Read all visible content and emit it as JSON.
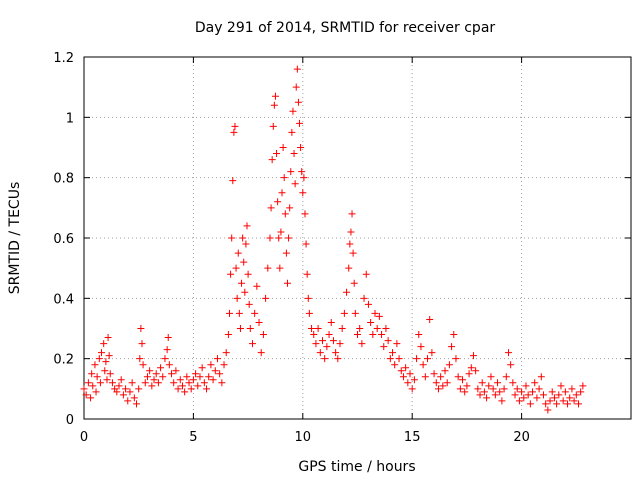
{
  "chart_data": {
    "type": "scatter",
    "title": "Day 291 of 2014, SRMTID for receiver cpar",
    "xlabel": "GPS time / hours",
    "ylabel": "SRMTID / TECUs",
    "xlim": [
      0,
      25
    ],
    "ylim": [
      0,
      1.2
    ],
    "xticks": [
      0,
      5,
      10,
      15,
      20
    ],
    "xtick_labels": [
      "0",
      "5",
      "10",
      "15",
      "20"
    ],
    "yticks": [
      0,
      0.2,
      0.4,
      0.6,
      0.8,
      1,
      1.2
    ],
    "ytick_labels": [
      "0",
      "0.2",
      "0.4",
      "0.6",
      "0.8",
      "1",
      "1.2"
    ],
    "grid": true,
    "marker": "plus",
    "color": "#ff0000",
    "series": [
      {
        "name": "SRMTID",
        "points": [
          [
            0.0,
            0.1
          ],
          [
            0.1,
            0.08
          ],
          [
            0.2,
            0.12
          ],
          [
            0.3,
            0.07
          ],
          [
            0.35,
            0.15
          ],
          [
            0.4,
            0.11
          ],
          [
            0.5,
            0.18
          ],
          [
            0.55,
            0.09
          ],
          [
            0.6,
            0.14
          ],
          [
            0.7,
            0.2
          ],
          [
            0.75,
            0.12
          ],
          [
            0.8,
            0.22
          ],
          [
            0.9,
            0.25
          ],
          [
            0.95,
            0.16
          ],
          [
            1.0,
            0.19
          ],
          [
            1.05,
            0.13
          ],
          [
            1.1,
            0.27
          ],
          [
            1.15,
            0.21
          ],
          [
            1.2,
            0.15
          ],
          [
            1.3,
            0.12
          ],
          [
            1.4,
            0.1
          ],
          [
            1.5,
            0.09
          ],
          [
            1.6,
            0.11
          ],
          [
            1.7,
            0.13
          ],
          [
            1.8,
            0.08
          ],
          [
            1.9,
            0.1
          ],
          [
            2.0,
            0.06
          ],
          [
            2.1,
            0.09
          ],
          [
            2.2,
            0.12
          ],
          [
            2.3,
            0.07
          ],
          [
            2.4,
            0.05
          ],
          [
            2.5,
            0.1
          ],
          [
            2.55,
            0.2
          ],
          [
            2.6,
            0.3
          ],
          [
            2.65,
            0.25
          ],
          [
            2.7,
            0.18
          ],
          [
            2.8,
            0.12
          ],
          [
            2.9,
            0.14
          ],
          [
            3.0,
            0.16
          ],
          [
            3.1,
            0.11
          ],
          [
            3.2,
            0.13
          ],
          [
            3.3,
            0.15
          ],
          [
            3.4,
            0.12
          ],
          [
            3.5,
            0.17
          ],
          [
            3.6,
            0.14
          ],
          [
            3.7,
            0.2
          ],
          [
            3.8,
            0.23
          ],
          [
            3.85,
            0.27
          ],
          [
            3.9,
            0.18
          ],
          [
            4.0,
            0.15
          ],
          [
            4.1,
            0.12
          ],
          [
            4.2,
            0.16
          ],
          [
            4.3,
            0.1
          ],
          [
            4.4,
            0.13
          ],
          [
            4.5,
            0.11
          ],
          [
            4.6,
            0.09
          ],
          [
            4.7,
            0.14
          ],
          [
            4.8,
            0.12
          ],
          [
            4.9,
            0.1
          ],
          [
            5.0,
            0.13
          ],
          [
            5.1,
            0.15
          ],
          [
            5.2,
            0.11
          ],
          [
            5.3,
            0.14
          ],
          [
            5.4,
            0.17
          ],
          [
            5.5,
            0.12
          ],
          [
            5.6,
            0.1
          ],
          [
            5.7,
            0.14
          ],
          [
            5.8,
            0.18
          ],
          [
            5.9,
            0.13
          ],
          [
            6.0,
            0.16
          ],
          [
            6.1,
            0.2
          ],
          [
            6.2,
            0.15
          ],
          [
            6.3,
            0.12
          ],
          [
            6.4,
            0.18
          ],
          [
            6.5,
            0.22
          ],
          [
            6.6,
            0.28
          ],
          [
            6.65,
            0.35
          ],
          [
            6.7,
            0.48
          ],
          [
            6.75,
            0.6
          ],
          [
            6.8,
            0.79
          ],
          [
            6.85,
            0.95
          ],
          [
            6.9,
            0.97
          ],
          [
            6.95,
            0.5
          ],
          [
            7.0,
            0.4
          ],
          [
            7.05,
            0.55
          ],
          [
            7.1,
            0.35
          ],
          [
            7.15,
            0.3
          ],
          [
            7.2,
            0.45
          ],
          [
            7.25,
            0.6
          ],
          [
            7.3,
            0.52
          ],
          [
            7.35,
            0.42
          ],
          [
            7.4,
            0.58
          ],
          [
            7.45,
            0.64
          ],
          [
            7.5,
            0.48
          ],
          [
            7.55,
            0.38
          ],
          [
            7.6,
            0.3
          ],
          [
            7.7,
            0.25
          ],
          [
            7.8,
            0.35
          ],
          [
            7.9,
            0.44
          ],
          [
            8.0,
            0.32
          ],
          [
            8.1,
            0.22
          ],
          [
            8.2,
            0.28
          ],
          [
            8.3,
            0.4
          ],
          [
            8.4,
            0.5
          ],
          [
            8.5,
            0.6
          ],
          [
            8.55,
            0.7
          ],
          [
            8.6,
            0.86
          ],
          [
            8.65,
            0.97
          ],
          [
            8.7,
            1.04
          ],
          [
            8.75,
            1.07
          ],
          [
            8.8,
            0.88
          ],
          [
            8.85,
            0.72
          ],
          [
            8.9,
            0.6
          ],
          [
            8.95,
            0.5
          ],
          [
            9.0,
            0.62
          ],
          [
            9.05,
            0.75
          ],
          [
            9.1,
            0.9
          ],
          [
            9.15,
            0.8
          ],
          [
            9.2,
            0.68
          ],
          [
            9.25,
            0.55
          ],
          [
            9.3,
            0.45
          ],
          [
            9.35,
            0.6
          ],
          [
            9.4,
            0.7
          ],
          [
            9.45,
            0.82
          ],
          [
            9.5,
            0.95
          ],
          [
            9.55,
            1.02
          ],
          [
            9.6,
            0.88
          ],
          [
            9.65,
            0.78
          ],
          [
            9.7,
            1.1
          ],
          [
            9.75,
            1.16
          ],
          [
            9.8,
            1.05
          ],
          [
            9.85,
            0.98
          ],
          [
            9.9,
            0.9
          ],
          [
            9.95,
            0.82
          ],
          [
            10.0,
            0.75
          ],
          [
            10.05,
            0.8
          ],
          [
            10.1,
            0.68
          ],
          [
            10.15,
            0.58
          ],
          [
            10.2,
            0.48
          ],
          [
            10.25,
            0.4
          ],
          [
            10.3,
            0.35
          ],
          [
            10.4,
            0.3
          ],
          [
            10.5,
            0.28
          ],
          [
            10.6,
            0.25
          ],
          [
            10.7,
            0.3
          ],
          [
            10.8,
            0.22
          ],
          [
            10.9,
            0.26
          ],
          [
            11.0,
            0.2
          ],
          [
            11.1,
            0.24
          ],
          [
            11.2,
            0.28
          ],
          [
            11.3,
            0.32
          ],
          [
            11.4,
            0.26
          ],
          [
            11.5,
            0.22
          ],
          [
            11.6,
            0.2
          ],
          [
            11.7,
            0.25
          ],
          [
            11.8,
            0.3
          ],
          [
            11.9,
            0.35
          ],
          [
            12.0,
            0.42
          ],
          [
            12.1,
            0.5
          ],
          [
            12.15,
            0.58
          ],
          [
            12.2,
            0.62
          ],
          [
            12.25,
            0.68
          ],
          [
            12.3,
            0.55
          ],
          [
            12.35,
            0.45
          ],
          [
            12.4,
            0.35
          ],
          [
            12.5,
            0.28
          ],
          [
            12.6,
            0.3
          ],
          [
            12.7,
            0.25
          ],
          [
            12.8,
            0.4
          ],
          [
            12.9,
            0.48
          ],
          [
            13.0,
            0.38
          ],
          [
            13.1,
            0.32
          ],
          [
            13.2,
            0.28
          ],
          [
            13.3,
            0.35
          ],
          [
            13.4,
            0.3
          ],
          [
            13.5,
            0.34
          ],
          [
            13.6,
            0.28
          ],
          [
            13.7,
            0.24
          ],
          [
            13.8,
            0.3
          ],
          [
            13.9,
            0.26
          ],
          [
            14.0,
            0.2
          ],
          [
            14.1,
            0.22
          ],
          [
            14.2,
            0.18
          ],
          [
            14.3,
            0.25
          ],
          [
            14.4,
            0.2
          ],
          [
            14.5,
            0.16
          ],
          [
            14.6,
            0.14
          ],
          [
            14.7,
            0.17
          ],
          [
            14.8,
            0.12
          ],
          [
            14.9,
            0.15
          ],
          [
            15.0,
            0.1
          ],
          [
            15.1,
            0.13
          ],
          [
            15.2,
            0.2
          ],
          [
            15.3,
            0.28
          ],
          [
            15.4,
            0.24
          ],
          [
            15.5,
            0.18
          ],
          [
            15.6,
            0.14
          ],
          [
            15.7,
            0.2
          ],
          [
            15.8,
            0.33
          ],
          [
            15.9,
            0.22
          ],
          [
            16.0,
            0.15
          ],
          [
            16.1,
            0.12
          ],
          [
            16.2,
            0.1
          ],
          [
            16.3,
            0.14
          ],
          [
            16.4,
            0.11
          ],
          [
            16.5,
            0.16
          ],
          [
            16.6,
            0.12
          ],
          [
            16.7,
            0.18
          ],
          [
            16.8,
            0.24
          ],
          [
            16.9,
            0.28
          ],
          [
            17.0,
            0.2
          ],
          [
            17.1,
            0.14
          ],
          [
            17.2,
            0.1
          ],
          [
            17.3,
            0.13
          ],
          [
            17.4,
            0.09
          ],
          [
            17.5,
            0.11
          ],
          [
            17.6,
            0.15
          ],
          [
            17.7,
            0.17
          ],
          [
            17.8,
            0.21
          ],
          [
            17.9,
            0.16
          ],
          [
            18.0,
            0.1
          ],
          [
            18.1,
            0.08
          ],
          [
            18.2,
            0.12
          ],
          [
            18.3,
            0.09
          ],
          [
            18.4,
            0.07
          ],
          [
            18.5,
            0.11
          ],
          [
            18.6,
            0.14
          ],
          [
            18.7,
            0.1
          ],
          [
            18.8,
            0.08
          ],
          [
            18.9,
            0.12
          ],
          [
            19.0,
            0.09
          ],
          [
            19.1,
            0.06
          ],
          [
            19.2,
            0.1
          ],
          [
            19.3,
            0.14
          ],
          [
            19.4,
            0.22
          ],
          [
            19.5,
            0.18
          ],
          [
            19.6,
            0.12
          ],
          [
            19.7,
            0.08
          ],
          [
            19.8,
            0.1
          ],
          [
            19.9,
            0.06
          ],
          [
            20.0,
            0.09
          ],
          [
            20.1,
            0.07
          ],
          [
            20.2,
            0.11
          ],
          [
            20.3,
            0.08
          ],
          [
            20.4,
            0.05
          ],
          [
            20.5,
            0.09
          ],
          [
            20.6,
            0.12
          ],
          [
            20.7,
            0.07
          ],
          [
            20.8,
            0.1
          ],
          [
            20.9,
            0.14
          ],
          [
            21.0,
            0.08
          ],
          [
            21.1,
            0.05
          ],
          [
            21.2,
            0.03
          ],
          [
            21.3,
            0.06
          ],
          [
            21.4,
            0.09
          ],
          [
            21.5,
            0.07
          ],
          [
            21.6,
            0.05
          ],
          [
            21.7,
            0.08
          ],
          [
            21.8,
            0.11
          ],
          [
            21.9,
            0.06
          ],
          [
            22.0,
            0.09
          ],
          [
            22.1,
            0.05
          ],
          [
            22.2,
            0.07
          ],
          [
            22.3,
            0.1
          ],
          [
            22.4,
            0.06
          ],
          [
            22.5,
            0.08
          ],
          [
            22.6,
            0.05
          ],
          [
            22.7,
            0.09
          ],
          [
            22.8,
            0.11
          ]
        ]
      }
    ]
  }
}
